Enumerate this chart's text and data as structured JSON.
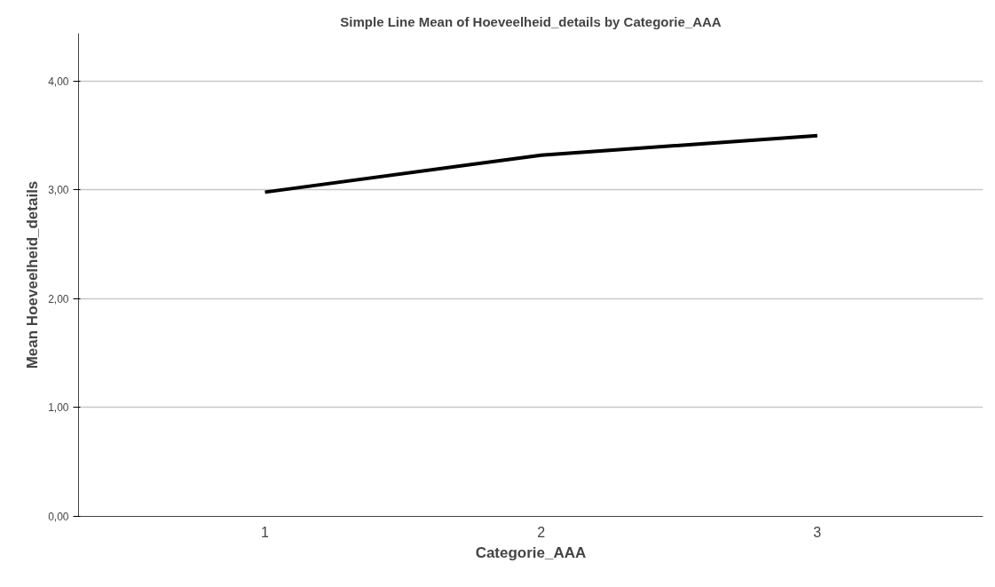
{
  "chart_data": {
    "type": "line",
    "title": "Simple Line Mean of Hoeveelheid_details by Categorie_AAA",
    "xlabel": "Categorie_AAA",
    "ylabel": "Mean Hoeveelheid_details",
    "categories": [
      "1",
      "2",
      "3"
    ],
    "series": [
      {
        "color": "#000000",
        "values": [
          2.98,
          3.32,
          3.5
        ]
      }
    ],
    "ylim": [
      0,
      4.44
    ],
    "yticks": [
      {
        "value": 0,
        "label": "0,00"
      },
      {
        "value": 1,
        "label": "1,00"
      },
      {
        "value": 2,
        "label": "2,00"
      },
      {
        "value": 3,
        "label": "3,00"
      },
      {
        "value": 4,
        "label": "4,00"
      }
    ],
    "grid": "y",
    "marker": "none",
    "line_style": "solid"
  }
}
